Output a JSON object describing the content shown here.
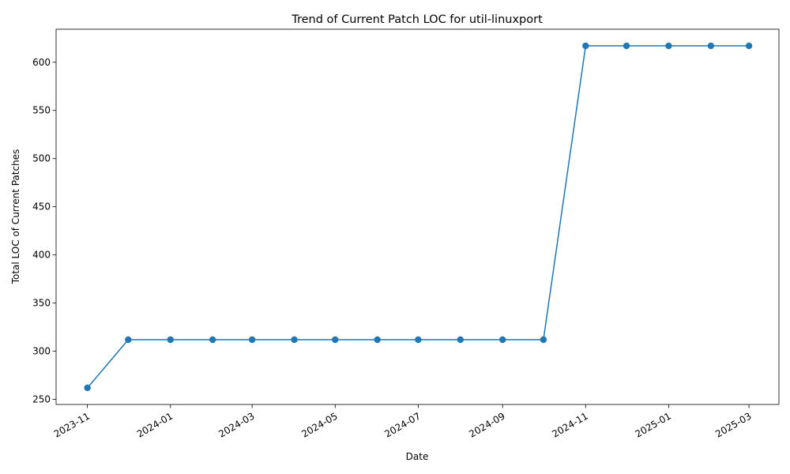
{
  "chart_data": {
    "type": "line",
    "title": "Trend of Current Patch LOC for util-linuxport",
    "xlabel": "Date",
    "ylabel": "Total LOC of Current Patches",
    "x": [
      "2023-11-01",
      "2023-12-01",
      "2024-01-01",
      "2024-02-01",
      "2024-03-01",
      "2024-04-01",
      "2024-05-01",
      "2024-06-01",
      "2024-07-01",
      "2024-08-01",
      "2024-09-01",
      "2024-10-01",
      "2024-11-01",
      "2024-12-01",
      "2025-01-01",
      "2025-02-01",
      "2025-03-01"
    ],
    "series": [
      {
        "values": [
          262,
          312,
          312,
          312,
          312,
          312,
          312,
          312,
          312,
          312,
          312,
          312,
          617,
          617,
          617,
          617,
          617
        ]
      }
    ],
    "x_ticks": [
      "2023-11",
      "2024-01",
      "2024-03",
      "2024-05",
      "2024-07",
      "2024-09",
      "2024-11",
      "2025-01",
      "2025-03"
    ],
    "y_ticks": [
      250,
      300,
      350,
      400,
      450,
      500,
      550,
      600
    ],
    "ylim": [
      244.75,
      634.25
    ],
    "xlim": [
      "2023-10-09",
      "2025-03-23"
    ],
    "grid": false,
    "color": "#1f77b4"
  }
}
